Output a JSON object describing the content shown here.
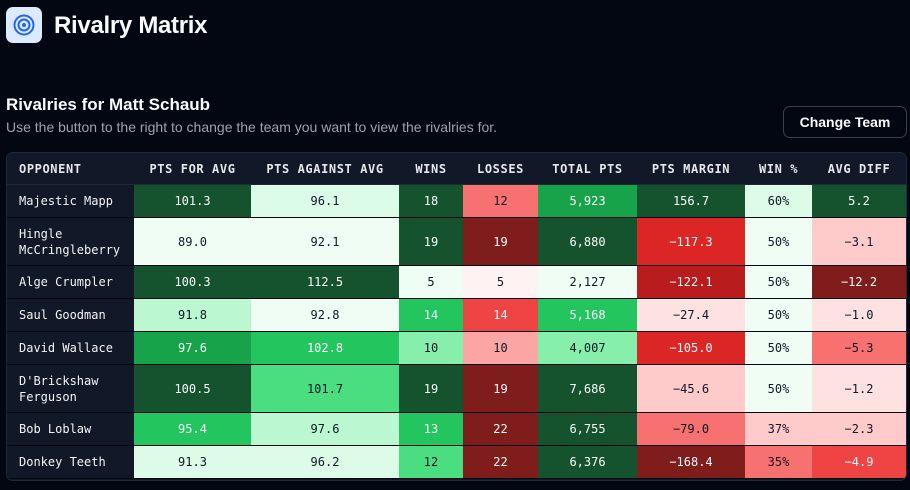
{
  "header": {
    "title": "Rivalry Matrix",
    "icon": "target-icon"
  },
  "section": {
    "title": "Rivalries for Matt Schaub",
    "subtitle": "Use the button to the right to change the team you want to view the rivalries for.",
    "button_label": "Change Team"
  },
  "table": {
    "columns": [
      "OPPONENT",
      "PTS FOR AVG",
      "PTS AGAINST AVG",
      "WINS",
      "LOSSES",
      "TOTAL PTS",
      "PTS MARGIN",
      "WIN %",
      "AVG DIFF"
    ],
    "rows": [
      {
        "cells": [
          "Majestic Mapp",
          "101.3",
          "96.1",
          "18",
          "12",
          "5,923",
          "156.7",
          "60%",
          "5.2"
        ],
        "colors": [
          "#14532d",
          "#dcfce7",
          "#14532d",
          "#f87171",
          "#16a34a",
          "#14532d",
          "#dcfce7",
          "#14532d"
        ]
      },
      {
        "cells": [
          "Hingle McCringleberry",
          "89.0",
          "92.1",
          "19",
          "19",
          "6,880",
          "−117.3",
          "50%",
          "−3.1"
        ],
        "colors": [
          "#f0fdf4",
          "#f0fdf4",
          "#14532d",
          "#7f1d1d",
          "#14532d",
          "#dc2626",
          "#f0fdf4",
          "#fecaca"
        ]
      },
      {
        "cells": [
          "Alge Crumpler",
          "100.3",
          "112.5",
          "5",
          "5",
          "2,127",
          "−122.1",
          "50%",
          "−12.2"
        ],
        "colors": [
          "#14532d",
          "#14532d",
          "#f0fdf4",
          "#fef2f2",
          "#f0fdf4",
          "#b91c1c",
          "#f0fdf4",
          "#7f1d1d"
        ]
      },
      {
        "cells": [
          "Saul Goodman",
          "91.8",
          "92.8",
          "14",
          "14",
          "5,168",
          "−27.4",
          "50%",
          "−1.0"
        ],
        "colors": [
          "#bbf7d0",
          "#f0fdf4",
          "#22c55e",
          "#ef4444",
          "#22c55e",
          "#fee2e2",
          "#f0fdf4",
          "#fee2e2"
        ]
      },
      {
        "cells": [
          "David Wallace",
          "97.6",
          "102.8",
          "10",
          "10",
          "4,007",
          "−105.0",
          "50%",
          "−5.3"
        ],
        "colors": [
          "#16a34a",
          "#22c55e",
          "#86efac",
          "#fca5a5",
          "#86efac",
          "#dc2626",
          "#f0fdf4",
          "#f87171"
        ]
      },
      {
        "cells": [
          "D'Brickshaw Ferguson",
          "100.5",
          "101.7",
          "19",
          "19",
          "7,686",
          "−45.6",
          "50%",
          "−1.2"
        ],
        "colors": [
          "#14532d",
          "#4ade80",
          "#14532d",
          "#7f1d1d",
          "#14532d",
          "#fecaca",
          "#f0fdf4",
          "#fee2e2"
        ]
      },
      {
        "cells": [
          "Bob Loblaw",
          "95.4",
          "97.6",
          "13",
          "22",
          "6,755",
          "−79.0",
          "37%",
          "−2.3"
        ],
        "colors": [
          "#22c55e",
          "#bbf7d0",
          "#22c55e",
          "#7f1d1d",
          "#14532d",
          "#f87171",
          "#fecaca",
          "#fecaca"
        ]
      },
      {
        "cells": [
          "Donkey Teeth",
          "91.3",
          "96.2",
          "12",
          "22",
          "6,376",
          "−168.4",
          "35%",
          "−4.9"
        ],
        "colors": [
          "#dcfce7",
          "#dcfce7",
          "#4ade80",
          "#7f1d1d",
          "#14532d",
          "#7f1d1d",
          "#f87171",
          "#ef4444"
        ]
      }
    ]
  }
}
